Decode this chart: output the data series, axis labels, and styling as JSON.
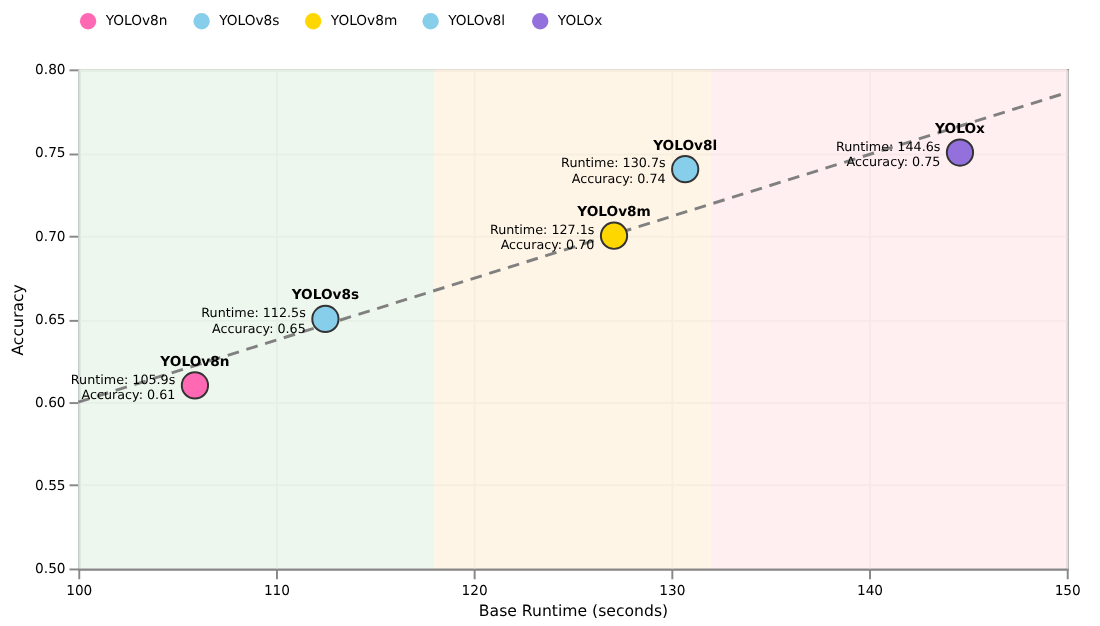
{
  "chart_data": {
    "type": "scatter",
    "xlabel": "Base Runtime (seconds)",
    "ylabel": "Accuracy",
    "xlim": [
      100,
      150
    ],
    "xticks": [
      100,
      110,
      120,
      130,
      140,
      150
    ],
    "ylim": [
      0.5,
      0.8
    ],
    "yticks": [
      {
        "value": 0.5,
        "label": "0.50"
      },
      {
        "value": 0.55,
        "label": "0.55"
      },
      {
        "value": 0.6,
        "label": "0.60"
      },
      {
        "value": 0.65,
        "label": "0.65"
      },
      {
        "value": 0.7,
        "label": "0.70"
      },
      {
        "value": 0.75,
        "label": "0.75"
      },
      {
        "value": 0.8,
        "label": "0.80"
      }
    ],
    "grid": true,
    "legend": "top",
    "marker": "circle",
    "series": [
      {
        "name": "YOLOv8n",
        "color": "#ff69b4",
        "x": [
          105.9
        ],
        "values": [
          0.61
        ]
      },
      {
        "name": "YOLOv8s",
        "color": "#87ceeb",
        "x": [
          112.5
        ],
        "values": [
          0.65
        ]
      },
      {
        "name": "YOLOv8m",
        "color": "#ffd700",
        "x": [
          127.1
        ],
        "values": [
          0.7
        ]
      },
      {
        "name": "YOLOv8l",
        "color": "#87ceeb",
        "x": [
          130.7
        ],
        "values": [
          0.74
        ]
      },
      {
        "name": "YOLOx",
        "color": "#9370db",
        "x": [
          144.6
        ],
        "values": [
          0.75
        ]
      },
      {
        "type": "line",
        "color": "#808080",
        "line_style": "dashed",
        "marker": "none",
        "x": [
          100,
          150
        ],
        "values": [
          0.6,
          0.786
        ]
      }
    ],
    "bands": [
      {
        "axis": "x",
        "from": 100,
        "to": 118,
        "color": "#e8f5e9"
      },
      {
        "axis": "x",
        "from": 118,
        "to": 132,
        "color": "#fff3e0"
      },
      {
        "axis": "x",
        "from": 132,
        "to": 150,
        "color": "#ffebee"
      }
    ],
    "annotations": [
      {
        "text": "Runtime: 105.9s\nAccuracy: 0.61",
        "x": 105.9,
        "y": 0.61
      },
      {
        "text": "Runtime: 112.5s\nAccuracy: 0.65",
        "x": 112.5,
        "y": 0.65
      },
      {
        "text": "Runtime: 127.1s\nAccuracy: 0.70",
        "x": 127.1,
        "y": 0.7
      },
      {
        "text": "Runtime: 130.7s\nAccuracy: 0.74",
        "x": 130.7,
        "y": 0.74
      },
      {
        "text": "Runtime: 144.6s\nAccuracy: 0.75",
        "x": 144.6,
        "y": 0.75
      }
    ]
  }
}
